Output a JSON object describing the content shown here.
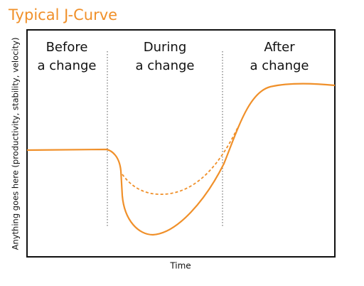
{
  "header": {
    "title": "Typical J-Curve"
  },
  "axes": {
    "y_label": "Anything goes here (productivity, stability, velocity)",
    "x_label": "Time"
  },
  "phases": [
    {
      "lines": [
        "Before",
        "a change"
      ]
    },
    {
      "lines": [
        "During",
        "a change"
      ]
    },
    {
      "lines": [
        "After",
        "a change"
      ]
    }
  ]
}
